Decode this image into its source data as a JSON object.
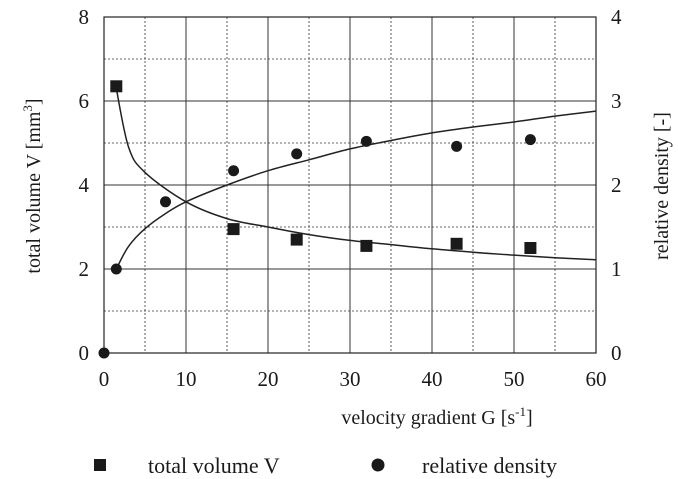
{
  "chart_data": {
    "type": "scatter",
    "x_axis": {
      "label": "velocity gradient G [s",
      "label_sup": "-1",
      "label_suffix": "]",
      "range": [
        0,
        60
      ],
      "ticks": [
        0,
        10,
        20,
        30,
        40,
        50,
        60
      ],
      "minor_gridlines": [
        5,
        15,
        25,
        35,
        45,
        55
      ]
    },
    "y_left": {
      "label": "total volume V [mm",
      "label_sup": "3",
      "label_suffix": "]",
      "range": [
        0,
        8
      ],
      "ticks": [
        0,
        2,
        4,
        6,
        8
      ],
      "minor_gridlines": [
        1,
        3,
        5,
        7
      ]
    },
    "y_right": {
      "label": "relative density [-]",
      "range": [
        0,
        4
      ],
      "ticks": [
        0,
        1,
        2,
        3,
        4
      ]
    },
    "grid": true,
    "series": [
      {
        "name": "total volume V",
        "marker": "square",
        "axis": "left",
        "x": [
          1.5,
          15.8,
          23.5,
          32,
          43,
          52
        ],
        "y": [
          6.35,
          2.95,
          2.7,
          2.55,
          2.6,
          2.5
        ],
        "fit_curve": {
          "x": [
            1.5,
            3,
            5,
            10,
            15,
            20,
            25,
            30,
            35,
            40,
            45,
            50,
            55,
            60
          ],
          "y": [
            6.3,
            4.9,
            4.3,
            3.6,
            3.2,
            3.0,
            2.82,
            2.68,
            2.58,
            2.48,
            2.4,
            2.33,
            2.27,
            2.22
          ]
        }
      },
      {
        "name": "relative density",
        "marker": "circle",
        "axis": "right",
        "x": [
          0,
          1.5,
          7.5,
          15.8,
          23.5,
          32,
          43,
          52
        ],
        "y": [
          0,
          1.0,
          1.8,
          2.17,
          2.37,
          2.52,
          2.46,
          2.54
        ],
        "fit_curve": {
          "x": [
            1.5,
            3,
            5,
            7.5,
            10,
            15,
            20,
            25,
            30,
            35,
            40,
            45,
            50,
            55,
            60
          ],
          "y": [
            1.0,
            1.27,
            1.48,
            1.66,
            1.8,
            2.0,
            2.17,
            2.3,
            2.43,
            2.53,
            2.62,
            2.69,
            2.75,
            2.82,
            2.88
          ]
        }
      }
    ],
    "legend": {
      "placement": "bottom",
      "items": [
        {
          "label": "total volume V",
          "marker": "square"
        },
        {
          "label": "relative density",
          "marker": "circle"
        }
      ]
    }
  }
}
